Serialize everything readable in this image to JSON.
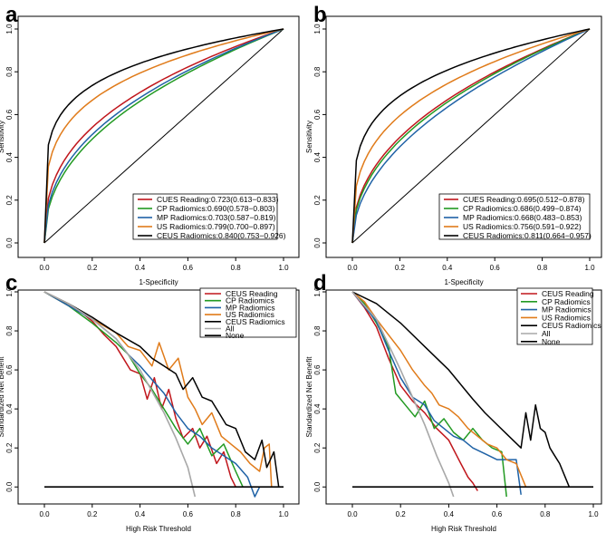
{
  "colors": {
    "red": "#c0161c",
    "green": "#229a22",
    "blue": "#1f62a6",
    "orange": "#e07b1a",
    "black": "#000000",
    "gray": "#a8a8a8"
  },
  "chart_data": [
    {
      "panel": "a",
      "type": "line",
      "xlabel": "1-Specificity",
      "ylabel": "Sensitivity",
      "xlim": [
        0,
        1
      ],
      "ylim": [
        0,
        1
      ],
      "ticks": [
        "0.0",
        "0.2",
        "0.4",
        "0.6",
        "0.8",
        "1.0"
      ],
      "tick_values": [
        0,
        0.2,
        0.4,
        0.6,
        0.8,
        1.0
      ],
      "reference_line": true,
      "legend_position": "bottom-right",
      "series": [
        {
          "name": "CUES Reading:0.723(0.613−0.833)",
          "color": "red",
          "auc": 0.723
        },
        {
          "name": "CP Radiomics:0.690(0.578−0.803)",
          "color": "green",
          "auc": 0.69
        },
        {
          "name": "MP Radiomics:0.703(0.587−0.819)",
          "color": "blue",
          "auc": 0.703
        },
        {
          "name": "US Radiomics:0.799(0.700−0.897)",
          "color": "orange",
          "auc": 0.799
        },
        {
          "name": "CEUS Radiomics:0.840(0.753−0.926)",
          "color": "black",
          "auc": 0.84
        }
      ]
    },
    {
      "panel": "b",
      "type": "line",
      "xlabel": "1-Specificity",
      "ylabel": "Sensitivity",
      "xlim": [
        0,
        1
      ],
      "ylim": [
        0,
        1
      ],
      "ticks": [
        "0.0",
        "0.2",
        "0.4",
        "0.6",
        "0.8",
        "1.0"
      ],
      "tick_values": [
        0,
        0.2,
        0.4,
        0.6,
        0.8,
        1.0
      ],
      "reference_line": true,
      "legend_position": "bottom-right",
      "series": [
        {
          "name": "CUES Reading:0.695(0.512−0.878)",
          "color": "red",
          "auc": 0.695
        },
        {
          "name": "CP Radiomics:0.686(0.499−0.874)",
          "color": "green",
          "auc": 0.686
        },
        {
          "name": "MP Radiomics:0.668(0.483−0.853)",
          "color": "blue",
          "auc": 0.668
        },
        {
          "name": "US Radiomics:0.756(0.591−0.922)",
          "color": "orange",
          "auc": 0.756
        },
        {
          "name": "CEUS Radiomics:0.811(0.664−0.957)",
          "color": "black",
          "auc": 0.811
        }
      ]
    },
    {
      "panel": "c",
      "type": "line",
      "xlabel": "High Risk Threshold",
      "ylabel": "Standardized Net Benefit",
      "xlim": [
        0,
        1
      ],
      "ylim": [
        -0.05,
        1
      ],
      "ticks": [
        "0.0",
        "0.2",
        "0.4",
        "0.6",
        "0.8",
        "1.0"
      ],
      "tick_values": [
        0,
        0.2,
        0.4,
        0.6,
        0.8,
        1.0
      ],
      "legend_position": "top-right",
      "series": [
        {
          "name": "CEUS Reading",
          "color": "red",
          "x": [
            0,
            0.1,
            0.15,
            0.2,
            0.25,
            0.3,
            0.33,
            0.36,
            0.4,
            0.43,
            0.46,
            0.49,
            0.52,
            0.55,
            0.58,
            0.62,
            0.65,
            0.68,
            0.72,
            0.75,
            0.78,
            0.8
          ],
          "y": [
            1,
            0.93,
            0.9,
            0.85,
            0.78,
            0.72,
            0.66,
            0.6,
            0.58,
            0.45,
            0.56,
            0.4,
            0.5,
            0.35,
            0.25,
            0.3,
            0.2,
            0.26,
            0.12,
            0.18,
            0.05,
            0
          ]
        },
        {
          "name": "CP Radiomics",
          "color": "green",
          "x": [
            0,
            0.1,
            0.2,
            0.3,
            0.35,
            0.4,
            0.45,
            0.5,
            0.55,
            0.6,
            0.65,
            0.7,
            0.75,
            0.8,
            0.83
          ],
          "y": [
            1,
            0.93,
            0.84,
            0.74,
            0.68,
            0.58,
            0.5,
            0.4,
            0.3,
            0.22,
            0.3,
            0.16,
            0.22,
            0.08,
            0
          ]
        },
        {
          "name": "MP Radiomics",
          "color": "blue",
          "x": [
            0,
            0.1,
            0.2,
            0.3,
            0.35,
            0.4,
            0.45,
            0.5,
            0.55,
            0.6,
            0.65,
            0.7,
            0.75,
            0.8,
            0.85,
            0.88,
            0.9
          ],
          "y": [
            1,
            0.93,
            0.86,
            0.76,
            0.68,
            0.62,
            0.55,
            0.48,
            0.38,
            0.3,
            0.26,
            0.2,
            0.16,
            0.12,
            0.05,
            -0.05,
            0
          ]
        },
        {
          "name": "US Radiomics",
          "color": "orange",
          "x": [
            0,
            0.1,
            0.2,
            0.3,
            0.35,
            0.4,
            0.45,
            0.48,
            0.52,
            0.56,
            0.6,
            0.63,
            0.66,
            0.7,
            0.74,
            0.78,
            0.82,
            0.86,
            0.9,
            0.92,
            0.94,
            0.95
          ],
          "y": [
            1,
            0.94,
            0.86,
            0.79,
            0.72,
            0.7,
            0.62,
            0.74,
            0.6,
            0.66,
            0.46,
            0.4,
            0.32,
            0.38,
            0.26,
            0.22,
            0.18,
            0.12,
            0.08,
            0.2,
            0.22,
            0
          ]
        },
        {
          "name": "CEUS Radiomics",
          "color": "black",
          "x": [
            0,
            0.1,
            0.2,
            0.3,
            0.4,
            0.45,
            0.5,
            0.55,
            0.58,
            0.62,
            0.66,
            0.7,
            0.73,
            0.76,
            0.8,
            0.84,
            0.88,
            0.91,
            0.93,
            0.96,
            0.98
          ],
          "y": [
            1,
            0.94,
            0.87,
            0.79,
            0.72,
            0.66,
            0.62,
            0.58,
            0.5,
            0.56,
            0.46,
            0.44,
            0.38,
            0.32,
            0.3,
            0.18,
            0.14,
            0.24,
            0.1,
            0.18,
            0
          ]
        },
        {
          "name": "All",
          "color": "gray",
          "x": [
            0,
            0.1,
            0.2,
            0.3,
            0.4,
            0.5,
            0.55,
            0.6,
            0.63
          ],
          "y": [
            1,
            0.94,
            0.86,
            0.76,
            0.6,
            0.38,
            0.25,
            0.1,
            -0.05
          ]
        },
        {
          "name": "None",
          "color": "black",
          "x": [
            0,
            1
          ],
          "y": [
            0,
            0
          ]
        }
      ]
    },
    {
      "panel": "d",
      "type": "line",
      "xlabel": "High Risk Threshold",
      "ylabel": "Standardized Net Benefit",
      "xlim": [
        0,
        1
      ],
      "ylim": [
        -0.05,
        1
      ],
      "ticks": [
        "0.0",
        "0.2",
        "0.4",
        "0.6",
        "0.8",
        "1.0"
      ],
      "tick_values": [
        0,
        0.2,
        0.4,
        0.6,
        0.8,
        1.0
      ],
      "legend_position": "top-right",
      "series": [
        {
          "name": "CEUS Reading",
          "color": "red",
          "x": [
            0,
            0.05,
            0.1,
            0.15,
            0.2,
            0.25,
            0.3,
            0.35,
            0.4,
            0.45,
            0.48,
            0.5,
            0.52
          ],
          "y": [
            1,
            0.92,
            0.82,
            0.66,
            0.52,
            0.44,
            0.38,
            0.3,
            0.24,
            0.12,
            0.05,
            0.02,
            -0.02
          ]
        },
        {
          "name": "CP Radiomics",
          "color": "green",
          "x": [
            0,
            0.05,
            0.1,
            0.15,
            0.18,
            0.22,
            0.26,
            0.3,
            0.34,
            0.38,
            0.42,
            0.46,
            0.5,
            0.54,
            0.58,
            0.62,
            0.64
          ],
          "y": [
            1,
            0.94,
            0.84,
            0.72,
            0.48,
            0.42,
            0.36,
            0.44,
            0.3,
            0.35,
            0.28,
            0.24,
            0.3,
            0.24,
            0.2,
            0.18,
            -0.05
          ]
        },
        {
          "name": "MP Radiomics",
          "color": "blue",
          "x": [
            0,
            0.1,
            0.15,
            0.2,
            0.25,
            0.3,
            0.34,
            0.38,
            0.42,
            0.46,
            0.5,
            0.55,
            0.6,
            0.65,
            0.68,
            0.7
          ],
          "y": [
            1,
            0.85,
            0.7,
            0.56,
            0.46,
            0.42,
            0.34,
            0.3,
            0.26,
            0.24,
            0.2,
            0.17,
            0.14,
            0.14,
            0.14,
            -0.04
          ]
        },
        {
          "name": "US Radiomics",
          "color": "orange",
          "x": [
            0,
            0.05,
            0.1,
            0.15,
            0.2,
            0.25,
            0.3,
            0.33,
            0.36,
            0.4,
            0.44,
            0.48,
            0.52,
            0.56,
            0.6,
            0.64,
            0.68,
            0.72,
            0.76,
            0.8,
            0.9
          ],
          "y": [
            1,
            0.95,
            0.86,
            0.78,
            0.7,
            0.6,
            0.52,
            0.48,
            0.42,
            0.4,
            0.36,
            0.3,
            0.26,
            0.22,
            0.2,
            0.14,
            0.12,
            0,
            0,
            0,
            0
          ]
        },
        {
          "name": "CEUS Radiomics",
          "color": "black",
          "x": [
            0,
            0.1,
            0.2,
            0.3,
            0.4,
            0.5,
            0.55,
            0.6,
            0.65,
            0.7,
            0.72,
            0.74,
            0.76,
            0.78,
            0.8,
            0.82,
            0.84,
            0.86,
            0.88,
            0.9
          ],
          "y": [
            1,
            0.94,
            0.84,
            0.72,
            0.6,
            0.45,
            0.38,
            0.32,
            0.26,
            0.2,
            0.38,
            0.24,
            0.42,
            0.3,
            0.28,
            0.2,
            0.16,
            0.12,
            0.06,
            0
          ]
        },
        {
          "name": "All",
          "color": "gray",
          "x": [
            0,
            0.1,
            0.2,
            0.3,
            0.35,
            0.4,
            0.42
          ],
          "y": [
            1,
            0.86,
            0.6,
            0.32,
            0.16,
            0.02,
            -0.05
          ]
        },
        {
          "name": "None",
          "color": "black",
          "x": [
            0,
            1
          ],
          "y": [
            0,
            0
          ]
        }
      ]
    }
  ]
}
